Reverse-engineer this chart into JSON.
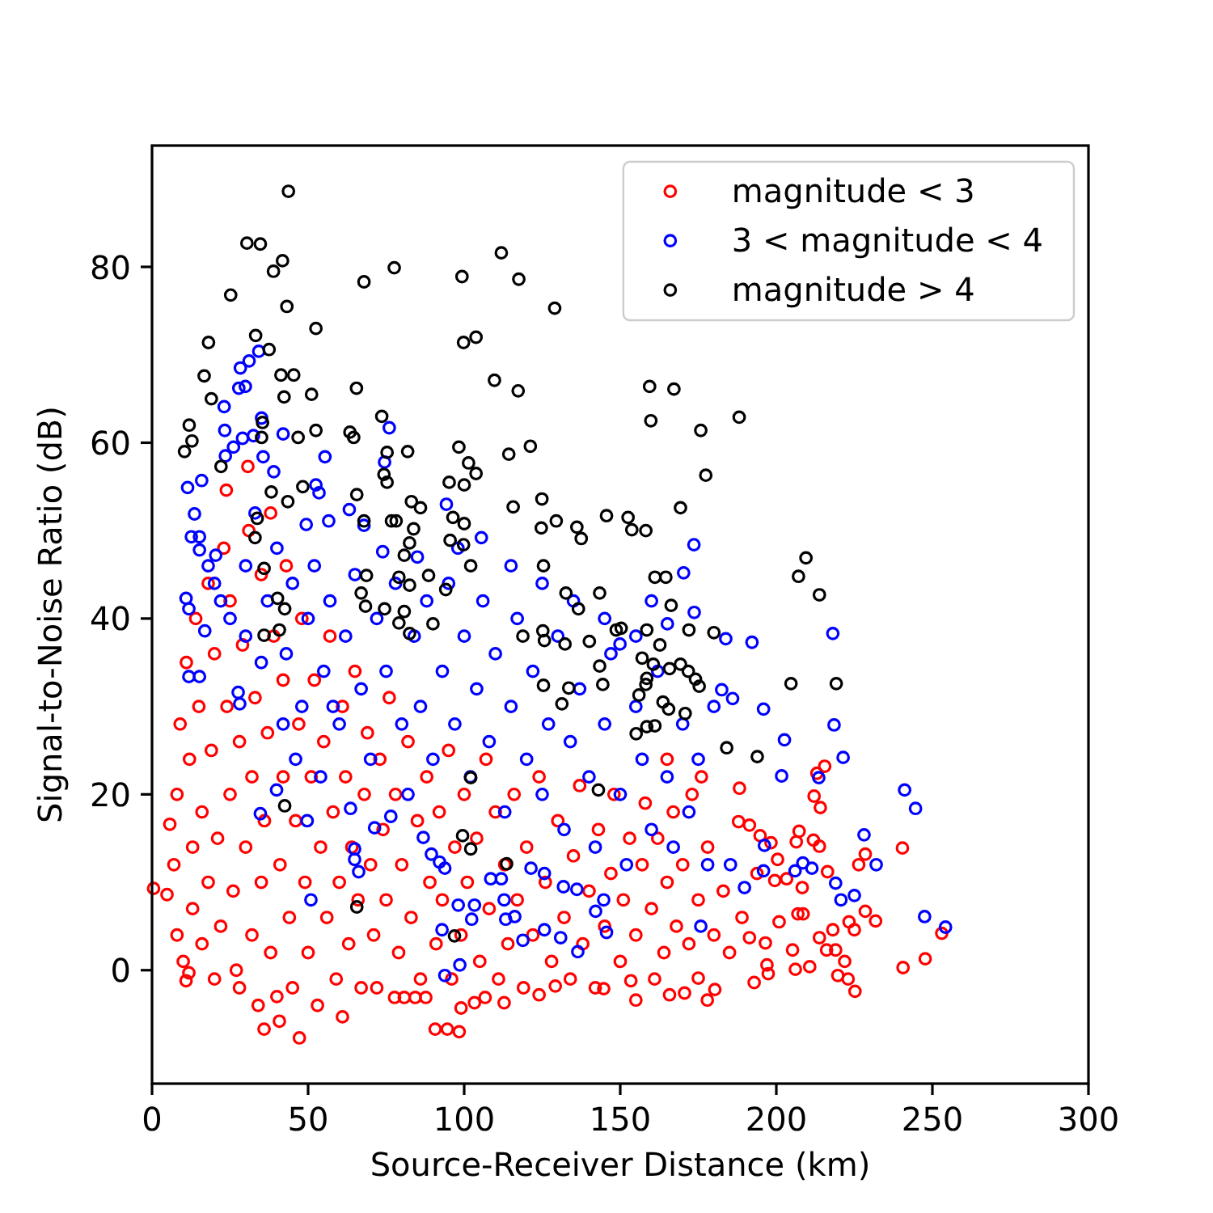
{
  "chart_data": {
    "type": "scatter",
    "xlabel": "Source-Receiver Distance (km)",
    "ylabel": "Signal-to-Noise Ratio (dB)",
    "xlim": [
      0,
      300
    ],
    "ylim": [
      -12.9,
      93.8
    ],
    "xticks": [
      0,
      50,
      100,
      150,
      200,
      250,
      300
    ],
    "yticks": [
      0,
      20,
      40,
      60,
      80
    ],
    "legend": "top right",
    "marker": "circle",
    "series": [
      {
        "name": "magnitude < 3",
        "color": "#ff0000",
        "x": [
          0.5,
          4.8,
          5.7,
          7,
          8,
          8,
          9,
          10,
          10.9,
          11.8,
          11,
          12,
          13,
          13,
          14,
          15,
          16,
          16,
          18,
          18,
          19,
          20,
          20,
          21,
          22,
          23,
          23.8,
          24,
          25,
          25,
          26,
          27,
          28,
          28,
          29,
          30,
          30.7,
          31,
          32,
          32,
          33,
          34,
          35,
          35,
          35.9,
          36,
          37,
          38,
          38,
          39,
          40,
          40.8,
          41,
          42,
          42,
          43,
          44,
          45,
          46,
          47,
          47.2,
          48,
          49,
          50,
          51,
          52,
          53,
          54,
          55,
          56,
          57,
          58,
          59,
          60,
          61,
          61,
          62,
          63,
          64,
          65,
          66,
          67,
          68,
          69,
          70,
          71,
          72,
          73,
          74,
          75,
          76,
          77.7,
          78,
          79,
          80,
          80.8,
          82,
          83,
          84.3,
          85,
          86,
          87.7,
          88,
          89,
          90.7,
          91,
          92,
          93,
          94.6,
          95,
          96,
          97,
          98.4,
          99,
          99,
          100,
          101,
          103.3,
          104,
          105,
          106.7,
          107,
          108,
          110,
          111,
          112.8,
          113,
          114,
          116,
          117,
          119,
          120,
          122,
          124,
          124,
          126,
          128,
          129.2,
          130,
          132,
          134,
          135,
          137,
          138,
          140,
          142,
          143,
          144.7,
          145,
          147,
          148,
          150,
          151,
          153.4,
          153,
          155,
          155,
          157,
          158,
          160,
          161,
          162,
          164,
          165,
          165.8,
          167,
          168,
          170.6,
          170,
          172,
          173,
          175,
          175,
          177.9,
          178,
          180.3,
          180,
          183,
          185,
          165,
          176,
          187.9,
          188.2,
          189,
          191.4,
          191.4,
          192.9,
          193.8,
          194.8,
          196.5,
          197,
          197.4,
          198.3,
          199.5,
          200.4,
          200.9,
          203.3,
          205.2,
          206.1,
          206.4,
          206.9,
          207.3,
          208.3,
          208.6,
          210.7,
          211.9,
          212.1,
          213,
          213.8,
          213.8,
          214.1,
          215.5,
          216.1,
          216.4,
          218.1,
          219,
          219.7,
          221.9,
          223,
          223.3,
          225,
          225.2,
          226.4,
          228.5,
          228.5,
          231.8,
          240.4,
          240.6,
          247.7,
          253
        ],
        "values": [
          9.3,
          8.6,
          16.6,
          12,
          20,
          4,
          28,
          1,
          -1.2,
          -0.3,
          35,
          24,
          14,
          7,
          40,
          30,
          18,
          3,
          44,
          10,
          25,
          36,
          -1,
          15,
          5,
          48,
          54.6,
          30,
          20,
          42,
          9,
          0,
          -2,
          26,
          37,
          14,
          57.3,
          50,
          4,
          22,
          31,
          -4,
          45,
          10,
          -6.7,
          17,
          27,
          52,
          2,
          38,
          -3,
          -5.8,
          12,
          33,
          22,
          46,
          6,
          -2,
          17,
          28,
          -7.7,
          40,
          10,
          2,
          22,
          33,
          -4,
          14,
          26,
          6,
          38,
          18,
          -1,
          10,
          -5.3,
          30,
          22,
          3,
          14,
          34,
          8,
          -2,
          20,
          27,
          12,
          4,
          -2,
          24,
          16,
          8,
          31,
          -3.1,
          20,
          2,
          12,
          -3.1,
          26,
          6,
          -3.1,
          17,
          -1,
          -3.1,
          22,
          10,
          -6.7,
          3,
          18,
          8,
          -6.7,
          25,
          -1,
          14,
          -7,
          -4.3,
          4,
          20,
          10,
          -3.7,
          15,
          1,
          -3.1,
          24,
          7,
          18,
          -1,
          -3.7,
          12,
          3,
          20,
          8,
          -2,
          14,
          4,
          -2.8,
          22,
          10,
          1,
          -1.8,
          17,
          6,
          -1,
          13,
          21,
          3,
          9,
          -2,
          16,
          -2.1,
          5,
          11,
          20,
          1,
          8,
          -1.2,
          15,
          -3.4,
          4,
          12,
          19,
          7,
          -1,
          15,
          2,
          10,
          -2.8,
          18,
          5,
          -2.6,
          12,
          3,
          20,
          -0.9,
          8,
          -3.4,
          14,
          -2.2,
          4,
          9,
          2,
          24,
          22,
          16.9,
          20.7,
          6,
          16.5,
          3.7,
          -1.4,
          11,
          15.3,
          3.1,
          0.6,
          -0.4,
          14.5,
          10.2,
          12.6,
          5.5,
          10.4,
          2.3,
          0.1,
          14.6,
          6.4,
          15.8,
          9.4,
          6.4,
          0.4,
          14.8,
          19.8,
          22.4,
          14.1,
          3.7,
          18.5,
          23.2,
          2.3,
          11.2,
          4.6,
          2.3,
          -0.6,
          1,
          -1,
          5.5,
          4.6,
          -2.4,
          12,
          13.2,
          6.7,
          5.6,
          13.9,
          0.3,
          1.3,
          4.2
        ]
      },
      {
        "name": "3 < magnitude < 4",
        "color": "#0000ff",
        "x": [
          34.2,
          31.1,
          28.3,
          27.8,
          29.9,
          23.1,
          35.1,
          23.3,
          29,
          32.5,
          42,
          76,
          26.1,
          35.6,
          55.4,
          23.5,
          15.9,
          11.4,
          39,
          74.5,
          13.6,
          52.5,
          53.5,
          94.3,
          63.2,
          105.5,
          56.6,
          49.4,
          67.9,
          12.6,
          15.2,
          73.9,
          15.2,
          20.4,
          10.9,
          11.8,
          16.9,
          11.8,
          15.2,
          27.6,
          28.1,
          34.7,
          39.9,
          50.9,
          49.7,
          63.6,
          64.9,
          64.9,
          66.2,
          71.3,
          76.5,
          86.9,
          89.5,
          92.1,
          93.8,
          92.9,
          98.6,
          93.8,
          98.1,
          102.4,
          103.3,
          108.5,
          111.9,
          112.8,
          116.2,
          113.3,
          118.8,
          125.7,
          130.9,
          136.4,
          131.8,
          136.1,
          121.4,
          125.7,
          142.1,
          144.7,
          145.6,
          173.6,
          170.3,
          173.7,
          165.1,
          183.8,
          192.2,
          218.1,
          149.9,
          182.5,
          186,
          195.9,
          218.5,
          202.6,
          221.4,
          201.7,
          213.6,
          241.1,
          244.6,
          228.1,
          232,
          208.5,
          211.4,
          206,
          219,
          225,
          220.7,
          247.5,
          254.2,
          195.9,
          196.2,
          189.8,
          185.3,
          175.8,
          20,
          25,
          30,
          33,
          37,
          40,
          43,
          45,
          48,
          50,
          52,
          55,
          57,
          60,
          62,
          65,
          67,
          70,
          72,
          75,
          78,
          80,
          82,
          84,
          86,
          88,
          90,
          93,
          95,
          97,
          100,
          102,
          104,
          106,
          108,
          110,
          113,
          115,
          117,
          120,
          122,
          125,
          127,
          130,
          132,
          134,
          137,
          140,
          142,
          145,
          147,
          150,
          152,
          155,
          157,
          160,
          162,
          165,
          167,
          170,
          172,
          175,
          178,
          180,
          115,
          125,
          135,
          145,
          155,
          160,
          98,
          85,
          42,
          46,
          54,
          58,
          35,
          30,
          22,
          18
        ],
        "values": [
          70.4,
          69.3,
          68.5,
          66.2,
          66.4,
          64.1,
          62.8,
          61.4,
          60.5,
          60.8,
          61,
          61.7,
          59.5,
          58.4,
          58.4,
          58.5,
          55.7,
          54.9,
          56.7,
          57.8,
          51.9,
          55.2,
          54.3,
          53,
          52.4,
          49.2,
          51.1,
          50.7,
          50.6,
          49.3,
          49.3,
          47.6,
          47.8,
          47.2,
          42.3,
          41.1,
          38.6,
          33.4,
          33.4,
          31.6,
          30.3,
          17.8,
          20.5,
          8,
          17,
          18.4,
          13.8,
          12.6,
          11.2,
          16.2,
          17.5,
          15.1,
          13.2,
          12.3,
          11.6,
          4.6,
          0.6,
          -0.6,
          7.4,
          5.8,
          7.4,
          10.4,
          10.4,
          8,
          6.1,
          5.8,
          3.4,
          4.6,
          3.7,
          2.1,
          9.5,
          9.2,
          11.6,
          11,
          6.7,
          8,
          4.3,
          48.4,
          45.2,
          40.7,
          39.4,
          37.7,
          37.3,
          38.3,
          37.1,
          31.9,
          30.9,
          29.7,
          27.9,
          26.2,
          24.2,
          22.1,
          21.9,
          20.5,
          18.4,
          15.4,
          12,
          12.2,
          11.6,
          11.3,
          9.9,
          8.5,
          8,
          6.1,
          4.9,
          11.3,
          14.2,
          9.4,
          12,
          5,
          44,
          40,
          46,
          52,
          42,
          48,
          36,
          44,
          30,
          40,
          46,
          34,
          42,
          28,
          38,
          45,
          32,
          24,
          40,
          34,
          44,
          28,
          20,
          38,
          30,
          42,
          24,
          34,
          44,
          28,
          38,
          22,
          32,
          42,
          26,
          36,
          18,
          30,
          40,
          24,
          34,
          20,
          28,
          38,
          16,
          26,
          32,
          22,
          14,
          28,
          36,
          20,
          12,
          30,
          24,
          16,
          34,
          22,
          14,
          28,
          18,
          24,
          12,
          30,
          46,
          44,
          42,
          40,
          38,
          42,
          48,
          47,
          28,
          24,
          22,
          30,
          35,
          38,
          42,
          46
        ]
      },
      {
        "name": "magnitude > 4",
        "color": "#000000",
        "x": [
          43.7,
          30.4,
          34.7,
          41.8,
          38.9,
          77.6,
          67.9,
          111.9,
          99.3,
          117.5,
          129,
          25.2,
          43.2,
          52.5,
          18.1,
          33.2,
          37.5,
          99.8,
          103.8,
          16.7,
          41.3,
          45.4,
          19,
          42.3,
          51.1,
          65.5,
          109.7,
          117.3,
          11.9,
          12.8,
          10.4,
          35.4,
          35.1,
          46.8,
          52.5,
          63.4,
          64.6,
          73.6,
          75.3,
          81.9,
          98.3,
          101.4,
          103.8,
          114.3,
          121.2,
          74.3,
          75.3,
          95.2,
          100,
          22.1,
          38.2,
          48.3,
          65.6,
          83.1,
          86,
          115.7,
          124.9,
          145.6,
          152.5,
          129.5,
          124.7,
          136.1,
          137.5,
          43.5,
          33.7,
          67.9,
          76.7,
          78.2,
          96.4,
          100,
          83.8,
          95.5,
          82.5,
          33,
          159.4,
          167.2,
          159.8,
          175.8,
          188.1,
          177.4,
          153.7,
          158.2,
          169.3,
          35.9,
          40.2,
          42.5,
          35.9,
          40.8,
          42.5,
          65.6,
          80.8,
          79.1,
          82.5,
          80.8,
          82.5,
          79.1,
          68.7,
          67,
          68.4,
          74.5,
          88.6,
          94.1,
          90,
          99.8,
          102.1,
          125.4,
          132.6,
          136.6,
          143.4,
          118.8,
          125.2,
          125.7,
          132.3,
          140.1,
          148.7,
          143.4,
          144.4,
          125.4,
          133.5,
          131.3,
          102.1,
          99.5,
          102.1,
          113.6,
          96.9,
          143,
          209.5,
          207.1,
          213.8,
          161.1,
          164.6,
          166.3,
          150.3,
          158.5,
          172,
          180,
          162.7,
          157,
          160.6,
          165.8,
          169.3,
          171.8,
          174.1,
          175.3,
          158.5,
          158.2,
          204.7,
          219.2,
          163.7,
          165.5,
          170.8,
          156,
          158.5,
          161.1,
          155.1,
          184.1,
          193.9
        ],
        "values": [
          88.6,
          82.7,
          82.6,
          80.7,
          79.5,
          79.9,
          78.3,
          81.6,
          78.9,
          78.6,
          75.3,
          76.8,
          75.5,
          73,
          71.4,
          72.2,
          70.6,
          71.4,
          72,
          67.6,
          67.7,
          67.7,
          65,
          65.2,
          65.5,
          66.2,
          67.1,
          65.9,
          62,
          60.2,
          59,
          62.3,
          60.6,
          60.6,
          61.4,
          61.2,
          60.6,
          63,
          58.9,
          59,
          59.5,
          57.7,
          56.5,
          58.7,
          59.6,
          56.4,
          55.5,
          55.5,
          55.2,
          57.3,
          54.4,
          55,
          54.1,
          53.3,
          52.6,
          52.7,
          53.6,
          51.7,
          51.5,
          51.1,
          50.3,
          50.4,
          49.1,
          53.3,
          51.4,
          51.1,
          51.1,
          51.1,
          51.5,
          50.8,
          50.2,
          48.9,
          48.6,
          49.2,
          66.4,
          66.1,
          62.5,
          61.4,
          62.9,
          56.3,
          50.1,
          50,
          52.6,
          45.7,
          42.3,
          41.1,
          38.1,
          38.7,
          18.7,
          7.2,
          47.2,
          44.7,
          43.8,
          40.8,
          38.3,
          39.5,
          44.9,
          42.9,
          41.4,
          41.1,
          44.9,
          43.3,
          39.4,
          48.4,
          46,
          46,
          42.9,
          41.1,
          42.9,
          38,
          38.6,
          37.5,
          37.1,
          37.4,
          38.7,
          34.6,
          32.5,
          32.4,
          32.1,
          30.3,
          21.9,
          15.3,
          13.8,
          12.1,
          3.9,
          20.5,
          46.9,
          44.8,
          42.7,
          44.7,
          44.7,
          41.5,
          38.9,
          38.7,
          38.7,
          38.4,
          37,
          35.5,
          34.8,
          34.3,
          34.8,
          34,
          33.1,
          32.3,
          33.2,
          32.5,
          32.6,
          32.6,
          30.5,
          29.7,
          29.2,
          31.3,
          27.7,
          27.8,
          26.9,
          25.3,
          24.3
        ]
      }
    ]
  }
}
